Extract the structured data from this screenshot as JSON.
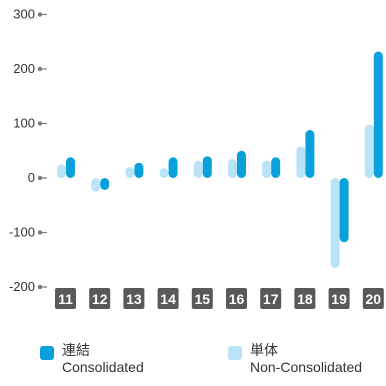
{
  "chart_data": {
    "type": "bar",
    "categories": [
      "11",
      "12",
      "13",
      "14",
      "15",
      "16",
      "17",
      "18",
      "19",
      "20"
    ],
    "yticks": [
      300,
      200,
      100,
      0,
      -100,
      -200
    ],
    "ylim": [
      -200,
      300
    ],
    "grid": false,
    "legend_position": "bottom",
    "series": [
      {
        "name": "単体 Non-Consolidated",
        "color": "#b9e3f7",
        "values": [
          25,
          -25,
          20,
          18,
          32,
          35,
          32,
          58,
          -165,
          98
        ]
      },
      {
        "name": "連結 Consolidated",
        "color": "#0aa0dc",
        "values": [
          38,
          -22,
          28,
          38,
          40,
          50,
          38,
          88,
          -118,
          232
        ]
      }
    ]
  },
  "legend": {
    "consolidated": {
      "jp": "連結",
      "en": "Consolidated"
    },
    "non_consolidated": {
      "jp": "単体",
      "en": "Non-Consolidated"
    }
  }
}
